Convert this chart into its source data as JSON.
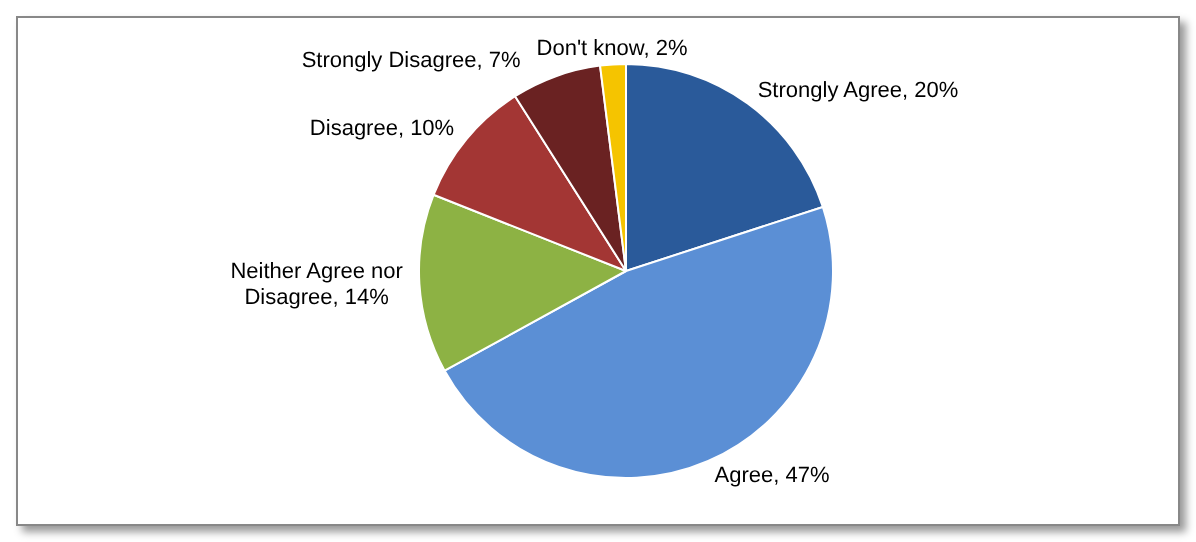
{
  "chart_data": {
    "type": "pie",
    "categories": [
      "Strongly Agree",
      "Agree",
      "Neither Agree nor Disagree",
      "Disagree",
      "Strongly Disagree",
      "Don't know"
    ],
    "values": [
      20,
      47,
      14,
      10,
      7,
      2
    ],
    "value_labels": [
      "20%",
      "47%",
      "14%",
      "10%",
      "7%",
      "2%"
    ],
    "colors": [
      "#2a5a9a",
      "#5b8fd5",
      "#8db244",
      "#a33634",
      "#6a2222",
      "#f5c400"
    ],
    "data_labels": true,
    "legend": false
  }
}
